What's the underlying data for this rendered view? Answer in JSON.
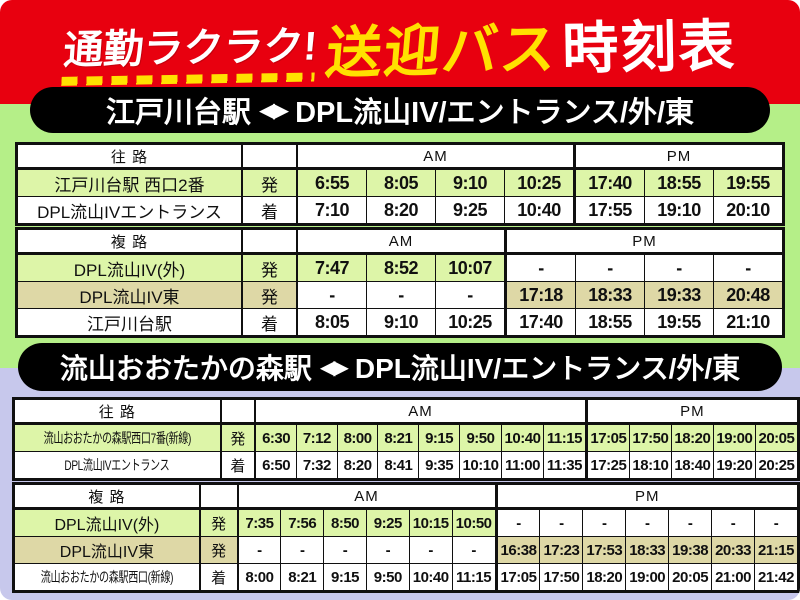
{
  "banner": {
    "part1": "通勤ラクラク!",
    "part2": "送迎バス",
    "part3": "時刻表"
  },
  "labels": {
    "am": "AM",
    "pm": "PM"
  },
  "colors": {
    "red": "#e8000f",
    "yellow": "#ffe100",
    "green_bg": "#b5ef88",
    "lavender_bg": "#c7c8ec",
    "cell_green": "#ddf5a8",
    "cell_tan": "#ded8a6"
  },
  "sections": [
    {
      "title_left": "江戸川台駅",
      "title_arrow": "◀▶",
      "title_right": "DPL流山IV/エントランス/外/東",
      "tables": [
        {
          "direction": "往 路",
          "am_cols": 4,
          "pm_cols": 3,
          "rows": [
            {
              "label": "江戸川台駅 西口2番",
              "type": "発",
              "highlight": "green",
              "times": [
                "6:55",
                "8:05",
                "9:10",
                "10:25",
                "17:40",
                "18:55",
                "19:55"
              ]
            },
            {
              "label": "DPL流山IVエントランス",
              "type": "着",
              "highlight": "none",
              "times": [
                "7:10",
                "8:20",
                "9:25",
                "10:40",
                "17:55",
                "19:10",
                "20:10"
              ]
            }
          ]
        },
        {
          "direction": "複 路",
          "am_cols": 3,
          "pm_cols": 4,
          "rows": [
            {
              "label": "DPL流山IV(外)",
              "type": "発",
              "highlight": "green",
              "times": [
                "7:47",
                "8:52",
                "10:07",
                "-",
                "-",
                "-",
                "-"
              ]
            },
            {
              "label": "DPL流山IV東",
              "type": "発",
              "highlight": "tan",
              "times": [
                "-",
                "-",
                "-",
                "17:18",
                "18:33",
                "19:33",
                "20:48"
              ]
            },
            {
              "label": "江戸川台駅",
              "type": "着",
              "highlight": "none",
              "times": [
                "8:05",
                "9:10",
                "10:25",
                "17:40",
                "18:55",
                "19:55",
                "21:10"
              ]
            }
          ]
        }
      ]
    },
    {
      "title_left": "流山おおたかの森駅",
      "title_arrow": "◀▶",
      "title_right": "DPL流山IV/エントランス/外/東",
      "tables": [
        {
          "direction": "往 路",
          "am_cols": 8,
          "pm_cols": 5,
          "rows": [
            {
              "label": "流山おおたかの森駅西口7番(新線)",
              "type": "発",
              "highlight": "green",
              "times": [
                "6:30",
                "7:12",
                "8:00",
                "8:21",
                "9:15",
                "9:50",
                "10:40",
                "11:15",
                "17:05",
                "17:50",
                "18:20",
                "19:00",
                "20:05"
              ]
            },
            {
              "label": "DPL流山IVエントランス",
              "type": "着",
              "highlight": "none",
              "times": [
                "6:50",
                "7:32",
                "8:20",
                "8:41",
                "9:35",
                "10:10",
                "11:00",
                "11:35",
                "17:25",
                "18:10",
                "18:40",
                "19:20",
                "20:25"
              ]
            }
          ]
        },
        {
          "direction": "複 路",
          "am_cols": 6,
          "pm_cols": 7,
          "rows": [
            {
              "label": "DPL流山IV(外)",
              "type": "発",
              "highlight": "green",
              "times": [
                "7:35",
                "7:56",
                "8:50",
                "9:25",
                "10:15",
                "10:50",
                "-",
                "-",
                "-",
                "-",
                "-",
                "-",
                "-"
              ]
            },
            {
              "label": "DPL流山IV東",
              "type": "発",
              "highlight": "tan",
              "times": [
                "-",
                "-",
                "-",
                "-",
                "-",
                "-",
                "16:38",
                "17:23",
                "17:53",
                "18:33",
                "19:38",
                "20:33",
                "21:15"
              ]
            },
            {
              "label": "流山おおたかの森駅西口(新線)",
              "type": "着",
              "highlight": "none",
              "times": [
                "8:00",
                "8:21",
                "9:15",
                "9:50",
                "10:40",
                "11:15",
                "17:05",
                "17:50",
                "18:20",
                "19:00",
                "20:05",
                "21:00",
                "21:42"
              ]
            }
          ]
        }
      ]
    }
  ]
}
